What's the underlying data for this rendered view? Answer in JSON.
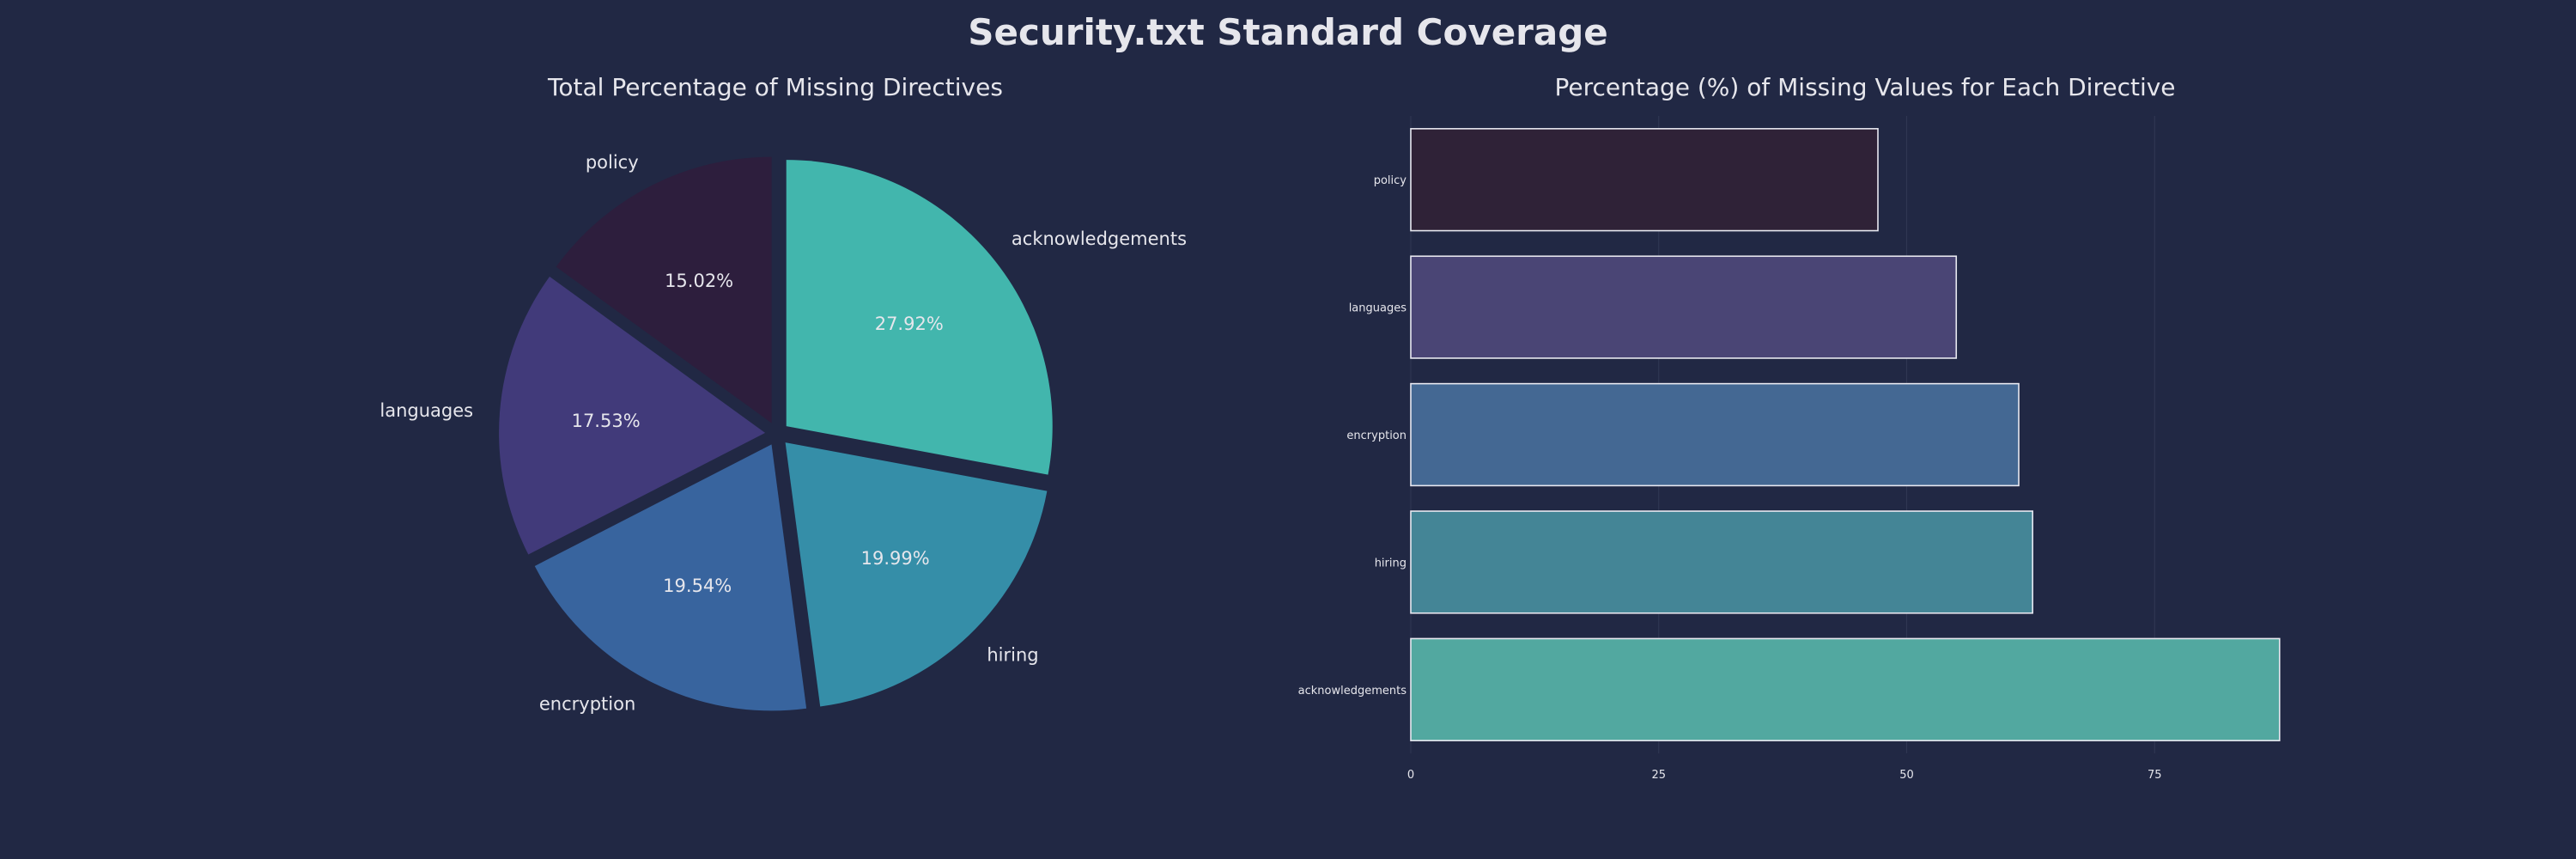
{
  "title": "Security.txt Standard Coverage",
  "chart_data": [
    {
      "type": "pie",
      "title": "Total Percentage of Missing Directives",
      "slices": [
        {
          "label": "acknowledgements",
          "value": 27.92,
          "pct_label": "27.92%",
          "color": "#42b6ad"
        },
        {
          "label": "hiring",
          "value": 19.99,
          "pct_label": "19.99%",
          "color": "#358ea8"
        },
        {
          "label": "encryption",
          "value": 19.54,
          "pct_label": "19.54%",
          "color": "#38649e"
        },
        {
          "label": "languages",
          "value": 17.53,
          "pct_label": "17.53%",
          "color": "#413a7a"
        },
        {
          "label": "policy",
          "value": 15.02,
          "pct_label": "15.02%",
          "color": "#2d1e3d"
        }
      ],
      "start_angle_deg": 90,
      "direction": "clockwise",
      "exploded": true
    },
    {
      "type": "bar",
      "orientation": "horizontal",
      "title": "Percentage (%) of Missing Values for Each Directive",
      "categories": [
        "policy",
        "languages",
        "encryption",
        "hiring",
        "acknowledgements"
      ],
      "values": [
        47.1,
        55.0,
        61.3,
        62.7,
        87.6
      ],
      "colors": [
        "#2f2237",
        "#4a4575",
        "#446893",
        "#448596",
        "#52a8a0"
      ],
      "xlim": [
        0,
        100
      ],
      "xticks": [
        0,
        25,
        50,
        75
      ],
      "xtick_labels": [
        "0",
        "25",
        "50",
        "75"
      ],
      "grid": "vertical"
    }
  ]
}
